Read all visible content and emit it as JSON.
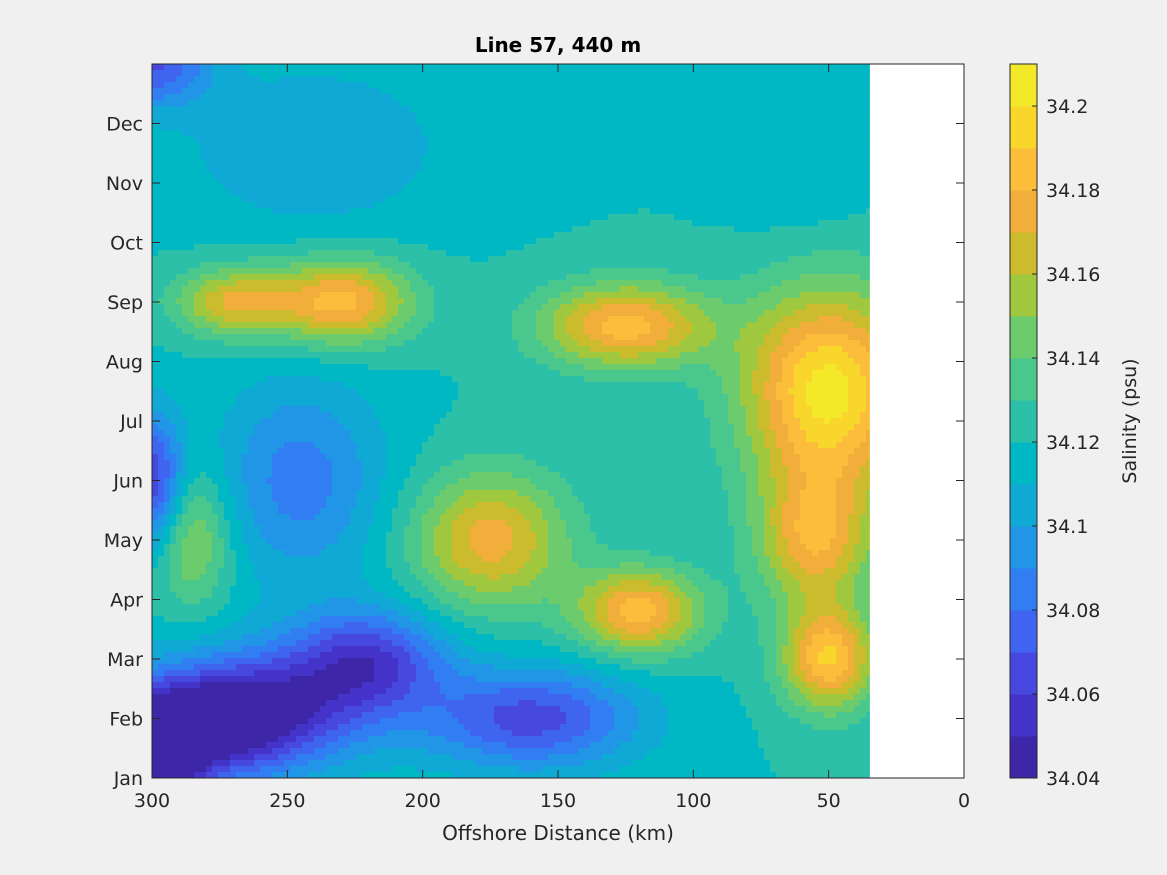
{
  "chart_data": {
    "type": "contour",
    "title": "Line 57, 440 m",
    "xlabel": "Offshore Distance (km)",
    "ylabel": "",
    "x_reversed": true,
    "xlim": [
      300,
      0
    ],
    "xticks": [
      300,
      250,
      200,
      150,
      100,
      50,
      0
    ],
    "ylim": [
      1,
      13
    ],
    "yticks": [
      {
        "value": 1,
        "label": "Jan"
      },
      {
        "value": 2,
        "label": "Feb"
      },
      {
        "value": 3,
        "label": "Mar"
      },
      {
        "value": 4,
        "label": "Apr"
      },
      {
        "value": 5,
        "label": "May"
      },
      {
        "value": 6,
        "label": "Jun"
      },
      {
        "value": 7,
        "label": "Jul"
      },
      {
        "value": 8,
        "label": "Aug"
      },
      {
        "value": 9,
        "label": "Sep"
      },
      {
        "value": 10,
        "label": "Oct"
      },
      {
        "value": 11,
        "label": "Nov"
      },
      {
        "value": 12,
        "label": "Dec"
      }
    ],
    "data_x_range_km": [
      300,
      35
    ],
    "colorbar": {
      "label": "Salinity (psu)",
      "min": 34.04,
      "max": 34.21,
      "levels": [
        34.04,
        34.05,
        34.06,
        34.07,
        34.08,
        34.09,
        34.1,
        34.11,
        34.12,
        34.13,
        34.14,
        34.15,
        34.16,
        34.17,
        34.18,
        34.19,
        34.2,
        34.21
      ],
      "tick_values": [
        34.04,
        34.06,
        34.08,
        34.1,
        34.12,
        34.14,
        34.16,
        34.18,
        34.2
      ],
      "tick_labels": [
        "34.04",
        "34.06",
        "34.08",
        "34.1",
        "34.12",
        "34.14",
        "34.16",
        "34.18",
        "34.2"
      ],
      "colors": [
        "#3e26a8",
        "#4433c8",
        "#4648e0",
        "#3f64f0",
        "#307ef2",
        "#2196e6",
        "#10a9d6",
        "#00b8c4",
        "#2cc0a8",
        "#4ac78c",
        "#6ccb6c",
        "#a0c83f",
        "#ccbb2c",
        "#f2ae3a",
        "#fcbe3a",
        "#f8d62c",
        "#f3e928"
      ]
    },
    "features": [
      {
        "x": 300,
        "y": 1.1,
        "value": 34.045,
        "sx": 12,
        "sy": 0.7
      },
      {
        "x": 285,
        "y": 1.8,
        "value": 34.06,
        "sx": 25,
        "sy": 0.6
      },
      {
        "x": 260,
        "y": 2.2,
        "value": 34.06,
        "sx": 30,
        "sy": 0.7
      },
      {
        "x": 220,
        "y": 3.0,
        "value": 34.065,
        "sx": 20,
        "sy": 0.6
      },
      {
        "x": 160,
        "y": 2.0,
        "value": 34.065,
        "sx": 28,
        "sy": 0.6
      },
      {
        "x": 300,
        "y": 6.0,
        "value": 34.06,
        "sx": 8,
        "sy": 0.8
      },
      {
        "x": 245,
        "y": 6.0,
        "value": 34.085,
        "sx": 22,
        "sy": 1.2
      },
      {
        "x": 285,
        "y": 5.0,
        "value": 34.155,
        "sx": 10,
        "sy": 0.8
      },
      {
        "x": 230,
        "y": 9.0,
        "value": 34.185,
        "sx": 18,
        "sy": 0.5
      },
      {
        "x": 270,
        "y": 9.0,
        "value": 34.17,
        "sx": 15,
        "sy": 0.4
      },
      {
        "x": 125,
        "y": 8.6,
        "value": 34.185,
        "sx": 22,
        "sy": 0.5
      },
      {
        "x": 175,
        "y": 5.0,
        "value": 34.175,
        "sx": 20,
        "sy": 0.8
      },
      {
        "x": 135,
        "y": 6.3,
        "value": 34.12,
        "sx": 25,
        "sy": 0.6
      },
      {
        "x": 120,
        "y": 3.8,
        "value": 34.185,
        "sx": 16,
        "sy": 0.5
      },
      {
        "x": 50,
        "y": 7.5,
        "value": 34.205,
        "sx": 22,
        "sy": 1.2
      },
      {
        "x": 50,
        "y": 3.0,
        "value": 34.19,
        "sx": 12,
        "sy": 0.6
      },
      {
        "x": 55,
        "y": 5.0,
        "value": 34.175,
        "sx": 15,
        "sy": 0.8
      },
      {
        "x": 60,
        "y": 11.3,
        "value": 34.11,
        "sx": 18,
        "sy": 0.9
      },
      {
        "x": 240,
        "y": 11.6,
        "value": 34.1,
        "sx": 35,
        "sy": 1.0
      },
      {
        "x": 300,
        "y": 13.0,
        "value": 34.07,
        "sx": 15,
        "sy": 0.5
      }
    ]
  }
}
